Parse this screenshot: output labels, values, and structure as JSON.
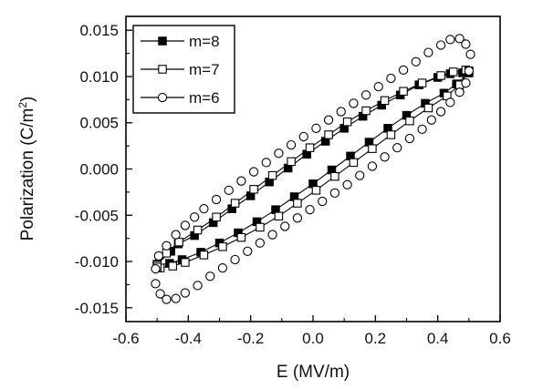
{
  "chart_data": {
    "type": "scatter",
    "title": "",
    "xlabel": "E (MV/m)",
    "ylabel_main": "Polarization (C/m",
    "ylabel_sup": "2",
    "ylabel_close": ")",
    "xlim": [
      -0.6,
      0.6
    ],
    "ylim": [
      -0.0165,
      0.0165
    ],
    "xticks": [
      -0.6,
      -0.4,
      -0.2,
      0.0,
      0.2,
      0.4,
      0.6
    ],
    "xtick_labels": [
      "-0.6",
      "-0.4",
      "-0.2",
      "0.0",
      "0.2",
      "0.4",
      "0.6"
    ],
    "yticks": [
      -0.015,
      -0.01,
      -0.005,
      0.0,
      0.005,
      0.01,
      0.015
    ],
    "ytick_labels": [
      "-0.015",
      "-0.010",
      "-0.005",
      "0.000",
      "0.005",
      "0.010",
      "0.015"
    ],
    "grid": false,
    "legend_position": "top-left",
    "series": [
      {
        "name": "m=8",
        "marker": "filled-square",
        "line": true,
        "upper": [
          [
            -0.5,
            -0.0103
          ],
          [
            -0.456,
            -0.0089
          ],
          [
            -0.432,
            -0.0081
          ],
          [
            -0.38,
            -0.0072
          ],
          [
            -0.32,
            -0.0058
          ],
          [
            -0.26,
            -0.0043
          ],
          [
            -0.2,
            -0.0029
          ],
          [
            -0.14,
            -0.0014
          ],
          [
            -0.08,
            0.0001
          ],
          [
            -0.02,
            0.0016
          ],
          [
            0.04,
            0.003
          ],
          [
            0.1,
            0.0044
          ],
          [
            0.16,
            0.0057
          ],
          [
            0.22,
            0.0069
          ],
          [
            0.28,
            0.008
          ],
          [
            0.34,
            0.0091
          ],
          [
            0.4,
            0.0099
          ],
          [
            0.44,
            0.0103
          ],
          [
            0.48,
            0.0104
          ],
          [
            0.5,
            0.0104
          ]
        ],
        "lower": [
          [
            0.5,
            0.0104
          ],
          [
            0.46,
            0.0092
          ],
          [
            0.42,
            0.0082
          ],
          [
            0.36,
            0.0071
          ],
          [
            0.3,
            0.0058
          ],
          [
            0.24,
            0.0044
          ],
          [
            0.18,
            0.0029
          ],
          [
            0.12,
            0.0014
          ],
          [
            0.06,
            -0.0001
          ],
          [
            0.0,
            -0.0016
          ],
          [
            -0.06,
            -0.003
          ],
          [
            -0.12,
            -0.0044
          ],
          [
            -0.18,
            -0.0057
          ],
          [
            -0.24,
            -0.0069
          ],
          [
            -0.3,
            -0.008
          ],
          [
            -0.36,
            -0.009
          ],
          [
            -0.42,
            -0.0098
          ],
          [
            -0.46,
            -0.0102
          ],
          [
            -0.5,
            -0.0104
          ]
        ]
      },
      {
        "name": "m=7",
        "marker": "open-square",
        "line": true,
        "upper": [
          [
            -0.5,
            -0.0104
          ],
          [
            -0.47,
            -0.0091
          ],
          [
            -0.43,
            -0.0079
          ],
          [
            -0.37,
            -0.0066
          ],
          [
            -0.31,
            -0.0052
          ],
          [
            -0.25,
            -0.0037
          ],
          [
            -0.19,
            -0.0022
          ],
          [
            -0.13,
            -0.0007
          ],
          [
            -0.07,
            0.0008
          ],
          [
            -0.01,
            0.0023
          ],
          [
            0.05,
            0.0037
          ],
          [
            0.11,
            0.0051
          ],
          [
            0.17,
            0.0063
          ],
          [
            0.23,
            0.0074
          ],
          [
            0.29,
            0.0084
          ],
          [
            0.35,
            0.0093
          ],
          [
            0.41,
            0.0101
          ],
          [
            0.45,
            0.0105
          ],
          [
            0.49,
            0.0107
          ],
          [
            0.5,
            0.0106
          ]
        ],
        "lower": [
          [
            0.5,
            0.0106
          ],
          [
            0.47,
            0.0091
          ],
          [
            0.43,
            0.0079
          ],
          [
            0.37,
            0.0066
          ],
          [
            0.31,
            0.0052
          ],
          [
            0.25,
            0.0037
          ],
          [
            0.19,
            0.0022
          ],
          [
            0.13,
            0.0007
          ],
          [
            0.07,
            -0.0008
          ],
          [
            0.01,
            -0.0023
          ],
          [
            -0.05,
            -0.0037
          ],
          [
            -0.11,
            -0.0051
          ],
          [
            -0.17,
            -0.0063
          ],
          [
            -0.23,
            -0.0074
          ],
          [
            -0.29,
            -0.0084
          ],
          [
            -0.35,
            -0.0093
          ],
          [
            -0.41,
            -0.0101
          ],
          [
            -0.45,
            -0.0105
          ],
          [
            -0.49,
            -0.0107
          ],
          [
            -0.5,
            -0.0106
          ]
        ]
      },
      {
        "name": "m=6",
        "marker": "open-circle",
        "line": false,
        "points": [
          [
            0.5,
            0.0106
          ],
          [
            0.49,
            0.0093
          ],
          [
            0.47,
            0.0083
          ],
          [
            0.44,
            0.0072
          ],
          [
            0.41,
            0.0062
          ],
          [
            0.38,
            0.0053
          ],
          [
            0.35,
            0.0043
          ],
          [
            0.31,
            0.0033
          ],
          [
            0.27,
            0.0023
          ],
          [
            0.23,
            0.0013
          ],
          [
            0.19,
            0.0003
          ],
          [
            0.15,
            -0.0007
          ],
          [
            0.11,
            -0.0017
          ],
          [
            0.07,
            -0.0026
          ],
          [
            0.03,
            -0.0035
          ],
          [
            -0.01,
            -0.0044
          ],
          [
            -0.05,
            -0.0053
          ],
          [
            -0.09,
            -0.0062
          ],
          [
            -0.13,
            -0.0071
          ],
          [
            -0.17,
            -0.008
          ],
          [
            -0.21,
            -0.0089
          ],
          [
            -0.25,
            -0.0098
          ],
          [
            -0.29,
            -0.0107
          ],
          [
            -0.33,
            -0.0116
          ],
          [
            -0.37,
            -0.0126
          ],
          [
            -0.41,
            -0.0134
          ],
          [
            -0.44,
            -0.014
          ],
          [
            -0.47,
            -0.0141
          ],
          [
            -0.49,
            -0.0135
          ],
          [
            -0.505,
            -0.0124
          ],
          [
            -0.505,
            -0.0108
          ],
          [
            -0.495,
            -0.0094
          ],
          [
            -0.47,
            -0.0083
          ],
          [
            -0.44,
            -0.0071
          ],
          [
            -0.41,
            -0.0061
          ],
          [
            -0.38,
            -0.0052
          ],
          [
            -0.35,
            -0.0043
          ],
          [
            -0.31,
            -0.0033
          ],
          [
            -0.27,
            -0.0023
          ],
          [
            -0.23,
            -0.0013
          ],
          [
            -0.19,
            -0.0003
          ],
          [
            -0.15,
            0.0007
          ],
          [
            -0.11,
            0.0017
          ],
          [
            -0.07,
            0.0026
          ],
          [
            -0.03,
            0.0035
          ],
          [
            0.01,
            0.0044
          ],
          [
            0.05,
            0.0053
          ],
          [
            0.09,
            0.0062
          ],
          [
            0.13,
            0.0071
          ],
          [
            0.17,
            0.008
          ],
          [
            0.21,
            0.0089
          ],
          [
            0.25,
            0.0098
          ],
          [
            0.29,
            0.0107
          ],
          [
            0.33,
            0.0116
          ],
          [
            0.37,
            0.0126
          ],
          [
            0.41,
            0.0134
          ],
          [
            0.44,
            0.014
          ],
          [
            0.47,
            0.0141
          ],
          [
            0.49,
            0.0135
          ],
          [
            0.505,
            0.0124
          ]
        ]
      }
    ]
  }
}
